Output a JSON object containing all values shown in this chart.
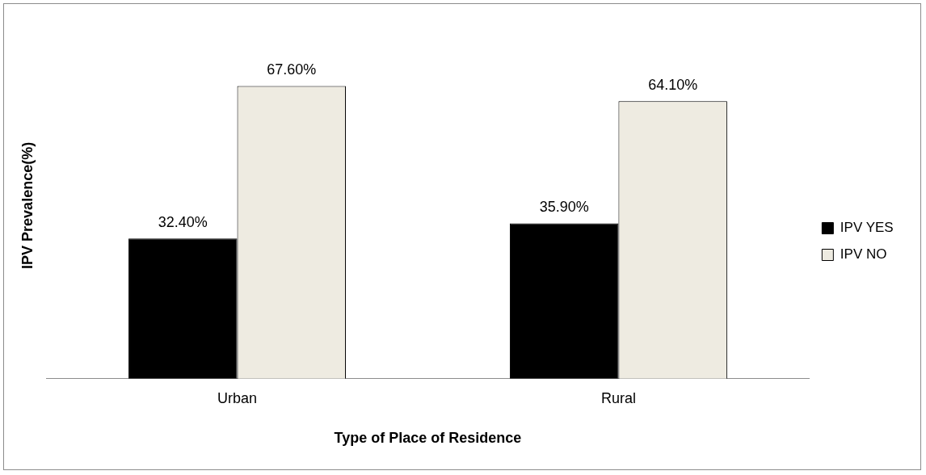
{
  "chart_data": {
    "type": "bar",
    "xlabel": "Type of Place of Residence",
    "ylabel": "IPV Prevalence(%)",
    "categories": [
      "Urban",
      "Rural"
    ],
    "series": [
      {
        "name": "IPV YES",
        "color": "#000000",
        "values": [
          32.4,
          35.9
        ],
        "value_labels": [
          "32.40%",
          "35.90%"
        ]
      },
      {
        "name": "IPV NO",
        "color": "#eeebe1",
        "values": [
          67.6,
          64.1
        ],
        "value_labels": [
          "67.60%",
          "64.10%"
        ]
      }
    ],
    "grid": false,
    "legend": "right"
  }
}
